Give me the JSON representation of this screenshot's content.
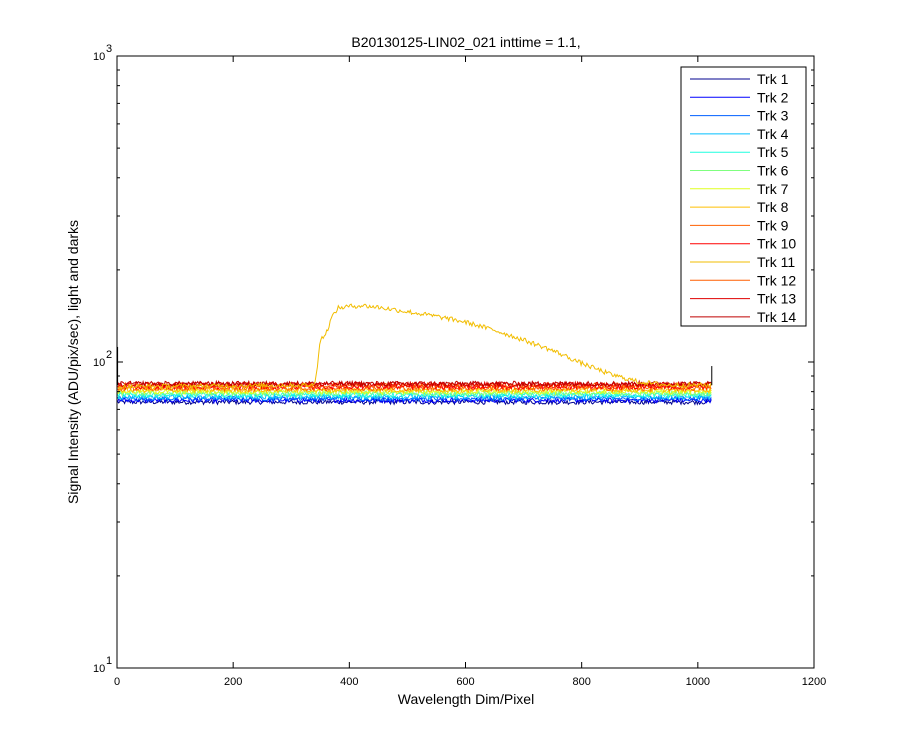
{
  "chart_data": {
    "type": "line",
    "title": "B20130125-LIN02_021 inttime = 1.1,",
    "xlabel": "Wavelength Dim/Pixel",
    "ylabel": "Signal Intensity (ADU/pix/sec), light and darks",
    "xlim": [
      0,
      1200
    ],
    "ylim": [
      10,
      1000
    ],
    "yscale": "log",
    "xticks": [
      0,
      200,
      400,
      600,
      800,
      1000,
      1200
    ],
    "xtick_labels": [
      "0",
      "200",
      "400",
      "600",
      "800",
      "1000",
      "1200"
    ],
    "yticks": [
      10,
      100,
      1000
    ],
    "ytick_labels": [
      {
        "base": "10",
        "exp": "1"
      },
      {
        "base": "10",
        "exp": "2"
      },
      {
        "base": "10",
        "exp": "3"
      }
    ],
    "grid": false,
    "legend_position": "top-right",
    "x_range": [
      1,
      1024
    ],
    "series": [
      {
        "name": "Trk 1",
        "color": "#00008f",
        "baseline": 74,
        "x": [
          1,
          1024
        ],
        "y": [
          74,
          74
        ]
      },
      {
        "name": "Trk 2",
        "color": "#0000ff",
        "baseline": 75,
        "x": [
          1,
          1024
        ],
        "y": [
          75,
          75
        ]
      },
      {
        "name": "Trk 3",
        "color": "#005fff",
        "baseline": 76,
        "x": [
          1,
          1024
        ],
        "y": [
          76,
          76
        ]
      },
      {
        "name": "Trk 4",
        "color": "#00bfff",
        "baseline": 77,
        "x": [
          1,
          1024
        ],
        "y": [
          77,
          77
        ]
      },
      {
        "name": "Trk 5",
        "color": "#1fffdf",
        "baseline": 78,
        "x": [
          1,
          1024
        ],
        "y": [
          78,
          78
        ]
      },
      {
        "name": "Trk 6",
        "color": "#7fff7f",
        "baseline": 79,
        "x": [
          1,
          1024
        ],
        "y": [
          79,
          79
        ]
      },
      {
        "name": "Trk 7",
        "color": "#dfff1f",
        "baseline": 80,
        "x": [
          1,
          1024
        ],
        "y": [
          80,
          80
        ]
      },
      {
        "name": "Trk 8",
        "color": "#ffbf00",
        "baseline": 81,
        "x": [
          1,
          1024
        ],
        "y": [
          81,
          81
        ]
      },
      {
        "name": "Trk 9",
        "color": "#ff5f00",
        "baseline": 82,
        "x": [
          1,
          1024
        ],
        "y": [
          82,
          82
        ]
      },
      {
        "name": "Trk 10",
        "color": "#ff0000",
        "baseline": 83,
        "x": [
          1,
          1024
        ],
        "y": [
          83,
          83
        ]
      },
      {
        "name": "Trk 11",
        "color": "#f2bd00",
        "baseline": 83,
        "x": [
          1,
          340,
          345,
          350,
          360,
          370,
          380,
          400,
          420,
          450,
          500,
          550,
          600,
          650,
          700,
          750,
          800,
          850,
          900,
          950,
          1024
        ],
        "y": [
          83,
          84,
          98,
          118,
          124,
          140,
          150,
          152,
          153,
          151,
          146,
          141,
          135,
          127,
          118,
          109,
          99,
          91,
          86,
          84,
          84
        ]
      },
      {
        "name": "Trk 12",
        "color": "#ff5f00",
        "baseline": 84,
        "x": [
          1,
          1024
        ],
        "y": [
          84,
          84
        ]
      },
      {
        "name": "Trk 13",
        "color": "#df0000",
        "baseline": 84.5,
        "x": [
          1,
          1024
        ],
        "y": [
          84.5,
          84.5
        ]
      },
      {
        "name": "Trk 14",
        "color": "#bf0000",
        "baseline": 85,
        "x": [
          1,
          1024
        ],
        "y": [
          85,
          85
        ]
      }
    ]
  }
}
